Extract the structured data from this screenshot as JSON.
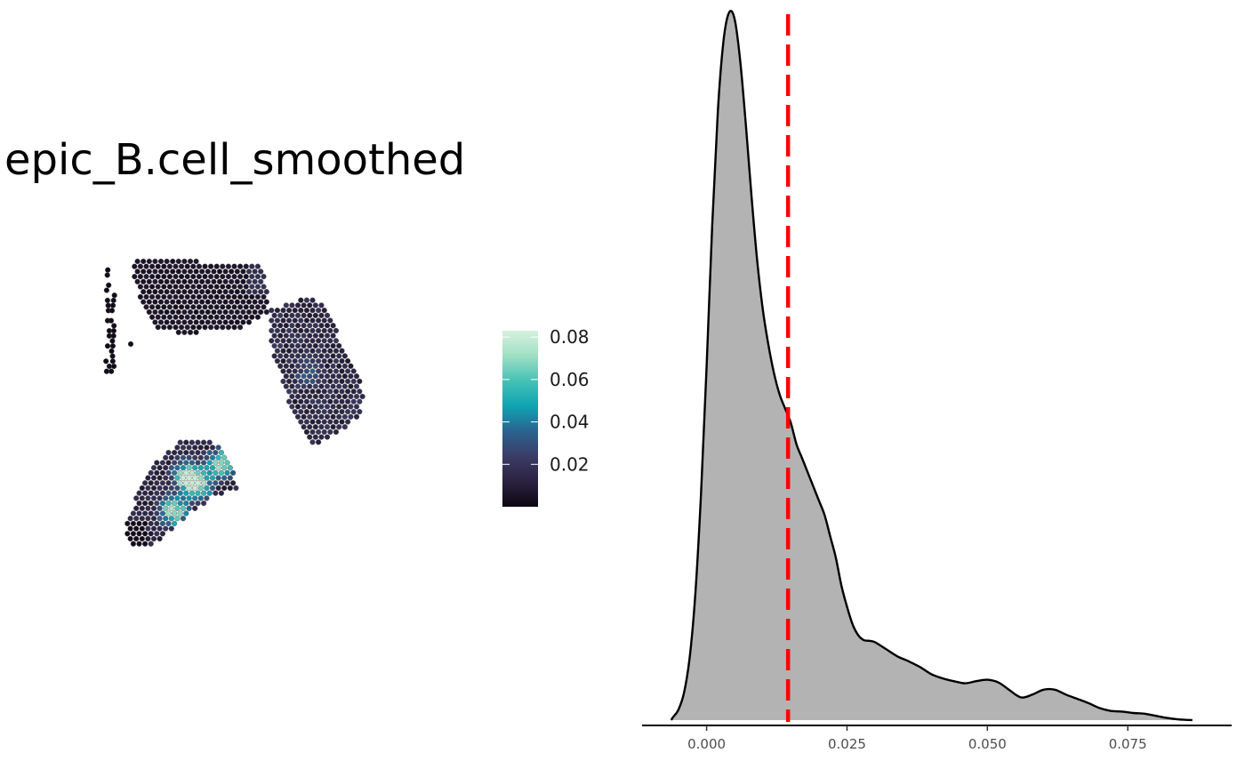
{
  "chart_data": [
    {
      "type": "spatial-scatter",
      "title": "epic_B.cell_smoothed",
      "color_scale": {
        "min": 0.0,
        "max": 0.083,
        "ticks": [
          "0.02",
          "0.04",
          "0.06",
          "0.08"
        ],
        "tick_values": [
          0.02,
          0.04,
          0.06,
          0.08
        ],
        "colors": [
          "#0d0612",
          "#2b2240",
          "#3b3c66",
          "#2a6390",
          "#10a3b3",
          "#44c2b5",
          "#9fdfc4",
          "#d6f2dd"
        ]
      },
      "regions": [
        {
          "name": "upper-left section",
          "typical_value": 0.006
        },
        {
          "name": "right section",
          "typical_value": 0.015
        },
        {
          "name": "lower-left section",
          "typical_value": 0.045,
          "max_value": 0.08
        }
      ]
    },
    {
      "type": "density",
      "x_ticks": [
        "0.000",
        "0.025",
        "0.050",
        "0.075"
      ],
      "x_tick_values": [
        0.0,
        0.025,
        0.05,
        0.075
      ],
      "xlim": [
        -0.0115,
        0.0935
      ],
      "fill_color": "#b3b3b3",
      "line_color": "#000000",
      "reference_line": {
        "x": 0.0145,
        "color": "#ff0000",
        "style": "dashed"
      },
      "curve": {
        "x": [
          -0.0063,
          -0.006,
          -0.005,
          -0.004,
          -0.003,
          -0.002,
          -0.001,
          0.0,
          0.001,
          0.002,
          0.003,
          0.004,
          0.005,
          0.006,
          0.007,
          0.008,
          0.009,
          0.01,
          0.011,
          0.012,
          0.013,
          0.014,
          0.015,
          0.016,
          0.017,
          0.018,
          0.019,
          0.02,
          0.021,
          0.022,
          0.023,
          0.024,
          0.025,
          0.026,
          0.027,
          0.028,
          0.029,
          0.03,
          0.032,
          0.034,
          0.036,
          0.038,
          0.04,
          0.042,
          0.044,
          0.046,
          0.048,
          0.05,
          0.052,
          0.054,
          0.056,
          0.058,
          0.06,
          0.062,
          0.064,
          0.066,
          0.068,
          0.07,
          0.072,
          0.074,
          0.076,
          0.078,
          0.08,
          0.082,
          0.084,
          0.0865
        ],
        "y": [
          0.0,
          0.004,
          0.015,
          0.04,
          0.09,
          0.18,
          0.32,
          0.5,
          0.7,
          0.86,
          0.96,
          1.0,
          0.99,
          0.93,
          0.84,
          0.74,
          0.65,
          0.58,
          0.53,
          0.49,
          0.46,
          0.44,
          0.42,
          0.39,
          0.37,
          0.35,
          0.33,
          0.31,
          0.29,
          0.26,
          0.23,
          0.19,
          0.16,
          0.135,
          0.12,
          0.113,
          0.112,
          0.11,
          0.1,
          0.09,
          0.083,
          0.075,
          0.065,
          0.059,
          0.055,
          0.052,
          0.055,
          0.057,
          0.053,
          0.042,
          0.032,
          0.036,
          0.043,
          0.043,
          0.036,
          0.03,
          0.024,
          0.017,
          0.013,
          0.012,
          0.01,
          0.009,
          0.006,
          0.003,
          0.001,
          0.0
        ]
      }
    }
  ]
}
